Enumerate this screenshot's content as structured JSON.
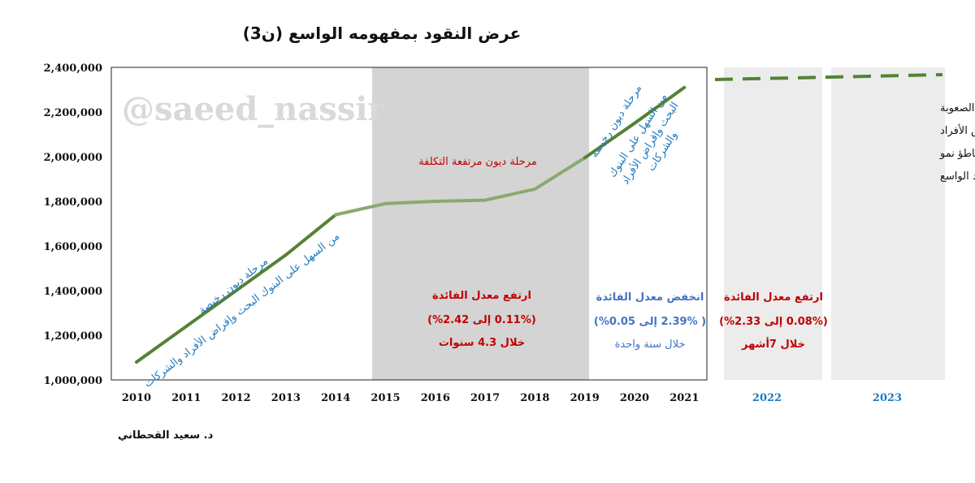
{
  "chart_data": {
    "type": "line",
    "title": "عرض النقود بمفهومه الواسع (ن3)",
    "x": [
      "2010",
      "2011",
      "2012",
      "2013",
      "2014",
      "2015",
      "2016",
      "2017",
      "2018",
      "2019",
      "2020",
      "2021"
    ],
    "series": [
      {
        "values": [
          1080000,
          1240000,
          1400000,
          1560000,
          1740000,
          1790000,
          1800000,
          1805000,
          1855000,
          1995000,
          2150000,
          2310000
        ]
      }
    ],
    "forecast_categories": [
      "2022",
      "2023"
    ],
    "ylim": [
      1000000,
      2400000
    ],
    "yticks": [
      "1,000,000",
      "1,200,000",
      "1,400,000",
      "1,600,000",
      "1,800,000",
      "2,000,000",
      "2,200,000",
      "2,400,000"
    ],
    "ytick_values": [
      1000000,
      1200000,
      1400000,
      1600000,
      1800000,
      2000000,
      2200000,
      2400000
    ],
    "grid": false,
    "colors": {
      "line_cheap": "#548235",
      "line_costly": "#8aaa6e",
      "forecast_dash": "#548235",
      "shade": "#d4d4d4",
      "shade_light": "#ececec",
      "blue_text": "#1f7ac0",
      "red_text": "#c00000",
      "mid_blue": "#4472c4"
    },
    "phases": {
      "p1": {
        "line1": "مرحلة ديون رخيصة",
        "line2": "من السهل على البنوك البحث وإقراض الأفراد والشركات"
      },
      "p2": {
        "label": "مرحلة ديون مرتفعة التكلفة"
      },
      "p3": {
        "line1": "مرحلة ديون رخيصة",
        "line2": "من السهل على البنوك",
        "line3": "البحث وإقراض الأفراد",
        "line4": "والشركات"
      }
    },
    "rates": {
      "r1": {
        "l1": "ارتفع معدل الفائدة",
        "l2": "(0.11% إلى 2.42%)",
        "l3": "خلال 4.3 سنوات"
      },
      "r2": {
        "l1": "انخفض معدل الفائدة",
        "l2": "( 2.39% إلى 0.05%)",
        "l3": "خلال سنة واحدة"
      },
      "r3": {
        "l1": "ارتفع معدل الفائدة",
        "l2": "(0.08% إلى 2.33%)",
        "l3": "خلال 7أشهر"
      }
    },
    "forecast_note": [
      "مرحلة ديون مرتفعة التكلفة، ومن الصعوبة",
      "على البنوك البحث و إقراض الأفراد",
      "والشركات المؤهلين، ومن المتوقع تباطؤ نمو",
      "عرض النقود الواسع"
    ]
  },
  "watermark": "@saeed_nassir",
  "author": "د. سعيد القحطاني"
}
